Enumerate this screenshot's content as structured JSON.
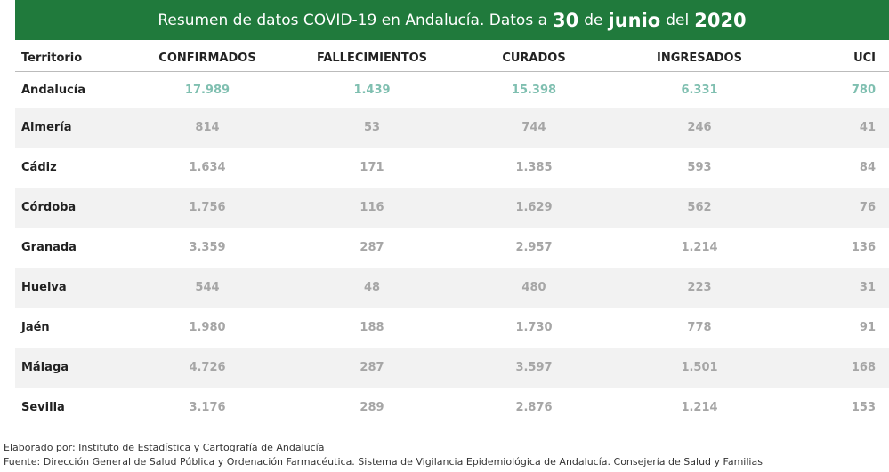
{
  "header": {
    "title_parts": [
      "Resumen de datos COVID-19 en Andalucía. Datos a",
      "30",
      "de",
      "junio",
      "del",
      "2020"
    ]
  },
  "table": {
    "columns": [
      "Territorio",
      "CONFIRMADOS",
      "FALLECIMIENTOS",
      "CURADOS",
      "INGRESADOS",
      "UCI"
    ],
    "rows": [
      [
        "Andalucía",
        "17.989",
        "1.439",
        "15.398",
        "6.331",
        "780"
      ],
      [
        "Almería",
        "814",
        "53",
        "744",
        "246",
        "41"
      ],
      [
        "Cádiz",
        "1.634",
        "171",
        "1.385",
        "593",
        "84"
      ],
      [
        "Córdoba",
        "1.756",
        "116",
        "1.629",
        "562",
        "76"
      ],
      [
        "Granada",
        "3.359",
        "287",
        "2.957",
        "1.214",
        "136"
      ],
      [
        "Huelva",
        "544",
        "48",
        "480",
        "223",
        "31"
      ],
      [
        "Jaén",
        "1.980",
        "188",
        "1.730",
        "778",
        "91"
      ],
      [
        "Málaga",
        "4.726",
        "287",
        "3.597",
        "1.501",
        "168"
      ],
      [
        "Sevilla",
        "3.176",
        "289",
        "2.876",
        "1.214",
        "153"
      ]
    ]
  },
  "footer": {
    "lines": [
      "Elaborado por: Instituto de Estadística y Cartografía de Andalucía",
      "Fuente: Dirección General de Salud Pública y Ordenación Farmacéutica. Sistema de Vigilancia Epidemiológica de Andalucía. Consejería de Salud y Familias"
    ]
  }
}
